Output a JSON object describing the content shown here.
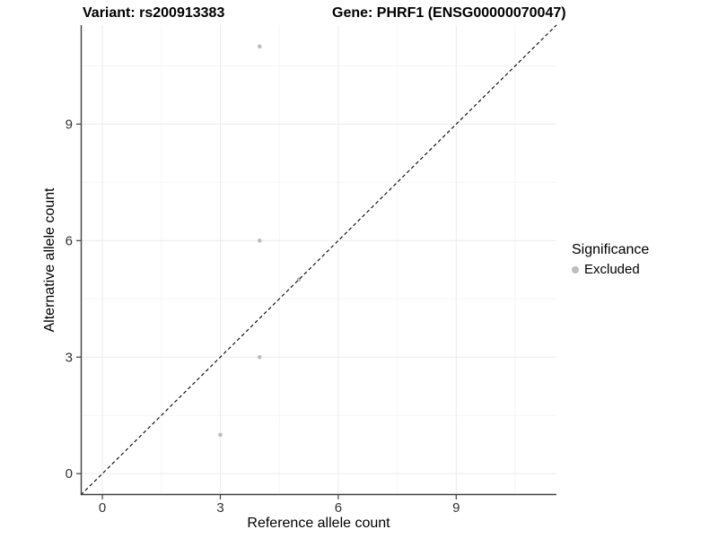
{
  "header": {
    "title_left": "Variant: rs200913383",
    "title_right": "Gene: PHRF1 (ENSG00000070047)"
  },
  "colors": {
    "background": "#ffffff",
    "grid_major": "#ebebeb",
    "grid_minor": "#f5f5f5",
    "axis_line": "#404040",
    "tick_label": "#333333",
    "point_excluded": "#bdbdbd",
    "reference_line": "#000000"
  },
  "chart_data": {
    "type": "scatter",
    "title_left": "Variant: rs200913383",
    "title_right": "Gene: PHRF1 (ENSG00000070047)",
    "xlabel": "Reference allele count",
    "ylabel": "Alternative allele count",
    "xlim": [
      -0.55,
      11.55
    ],
    "ylim": [
      -0.55,
      11.55
    ],
    "x_ticks": [
      0,
      3,
      6,
      9
    ],
    "y_ticks": [
      0,
      3,
      6,
      9
    ],
    "x_minor_ticks": [
      1.5,
      4.5,
      7.5,
      10.5
    ],
    "y_minor_ticks": [
      1.5,
      4.5,
      7.5,
      10.5
    ],
    "grid": true,
    "series": [
      {
        "name": "Excluded",
        "color": "#bdbdbd",
        "points": [
          [
            3,
            1
          ],
          [
            4,
            3
          ],
          [
            5,
            5
          ],
          [
            4,
            6
          ],
          [
            4,
            11
          ]
        ]
      }
    ],
    "reference_line": {
      "type": "identity",
      "style": "dashed",
      "color": "#000000",
      "from": [
        -0.55,
        -0.55
      ],
      "to": [
        11.55,
        11.55
      ]
    },
    "legend": {
      "title": "Significance",
      "position": "right",
      "items": [
        {
          "label": "Excluded",
          "color": "#bdbdbd"
        }
      ]
    }
  }
}
